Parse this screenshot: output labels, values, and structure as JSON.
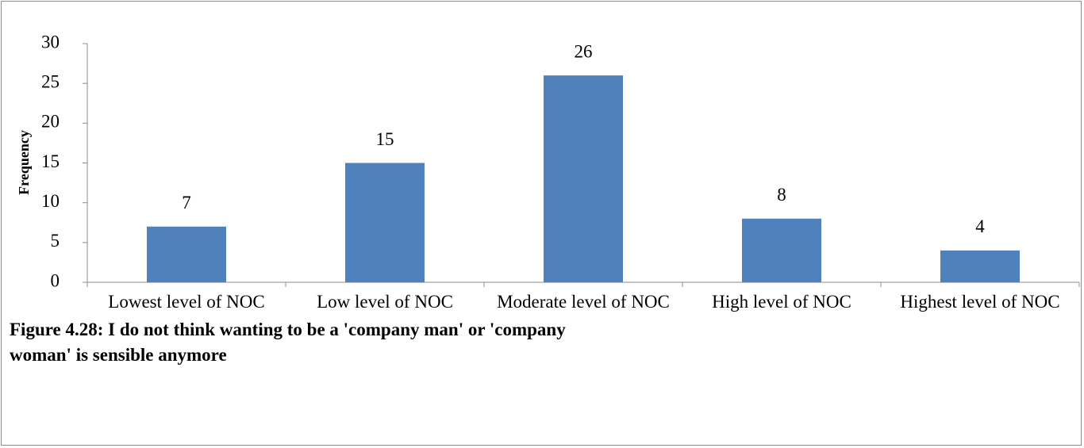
{
  "chart_data": {
    "type": "bar",
    "y_axis_label": "Frequency",
    "caption": "Figure 4.28: I do not think wanting to be a 'company man' or 'company woman' is sensible anymore",
    "categories": [
      "Lowest level of NOC",
      "Low level of NOC",
      "Moderate level of NOC",
      "High level of NOC",
      "Highest level of NOC"
    ],
    "values": [
      7,
      15,
      26,
      8,
      4
    ],
    "color": "#4f81bd",
    "ylim": [
      0,
      30
    ],
    "yticks": [
      0,
      5,
      10,
      15,
      20,
      25,
      30
    ],
    "grid": false
  }
}
